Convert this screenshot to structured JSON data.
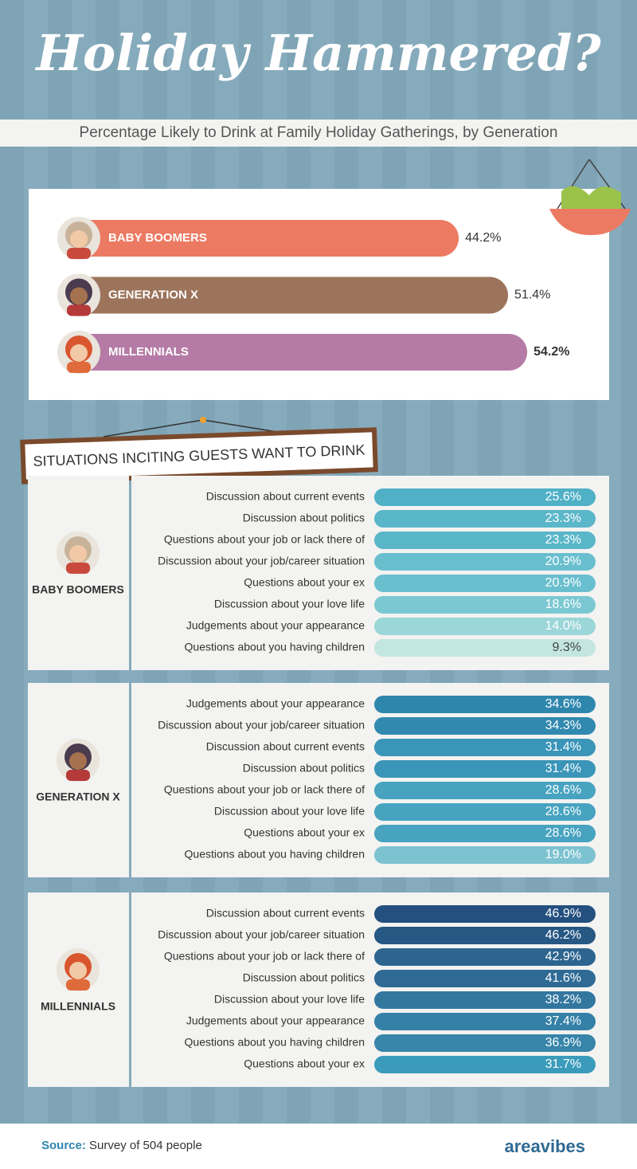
{
  "header": {
    "title": "Holiday Hammered?",
    "subtitle": "Percentage Likely to Drink at Family Holiday Gatherings, by Generation"
  },
  "chart_data": {
    "type": "bar",
    "orientation": "horizontal",
    "categories": [
      "BABY BOOMERS",
      "GENERATION X",
      "MILLENNIALS"
    ],
    "values": [
      44.2,
      51.4,
      54.2
    ],
    "value_labels": [
      "44.2%",
      "51.4%",
      "54.2%"
    ],
    "colors": [
      "#ec7a62",
      "#9c735b",
      "#b57ba6"
    ]
  },
  "sign": "SITUATIONS INCITING GUESTS WANT TO DRINK",
  "panels": [
    {
      "name": "BABY BOOMERS",
      "rows": [
        {
          "label": "Discussion about current events",
          "value": "25.6%",
          "color": "#4fb0c6"
        },
        {
          "label": "Discussion about politics",
          "value": "23.3%",
          "color": "#5ab6c9"
        },
        {
          "label": "Questions about your job or lack there of",
          "value": "23.3%",
          "color": "#5ab6c9"
        },
        {
          "label": "Discussion about your job/career situation",
          "value": "20.9%",
          "color": "#6abfcf"
        },
        {
          "label": "Questions about your ex",
          "value": "20.9%",
          "color": "#6abfcf"
        },
        {
          "label": "Discussion about your love life",
          "value": "18.6%",
          "color": "#7cc8d2"
        },
        {
          "label": "Judgements about your appearance",
          "value": "14.0%",
          "color": "#9bd6d8"
        },
        {
          "label": "Questions about you having children",
          "value": "9.3%",
          "color": "#c3e6e0"
        }
      ]
    },
    {
      "name": "GENERATION X",
      "rows": [
        {
          "label": "Judgements about your appearance",
          "value": "34.6%",
          "color": "#2f86ad"
        },
        {
          "label": "Discussion about your job/career situation",
          "value": "34.3%",
          "color": "#3189b0"
        },
        {
          "label": "Discussion about current events",
          "value": "31.4%",
          "color": "#3a95b8"
        },
        {
          "label": "Discussion about politics",
          "value": "31.4%",
          "color": "#3a95b8"
        },
        {
          "label": "Questions about your job or lack there of",
          "value": "28.6%",
          "color": "#47a3c0"
        },
        {
          "label": "Discussion about your love life",
          "value": "28.6%",
          "color": "#47a3c0"
        },
        {
          "label": "Questions about your ex",
          "value": "28.6%",
          "color": "#47a3c0"
        },
        {
          "label": "Questions about you having children",
          "value": "19.0%",
          "color": "#7cc2d0"
        }
      ]
    },
    {
      "name": "MILLENNIALS",
      "rows": [
        {
          "label": "Discussion about current events",
          "value": "46.9%",
          "color": "#24507f"
        },
        {
          "label": "Discussion about your job/career situation",
          "value": "46.2%",
          "color": "#275783"
        },
        {
          "label": "Questions about your job or lack there of",
          "value": "42.9%",
          "color": "#2d6590"
        },
        {
          "label": "Discussion about politics",
          "value": "41.6%",
          "color": "#2f6a94"
        },
        {
          "label": "Discussion about your love life",
          "value": "38.2%",
          "color": "#33779f"
        },
        {
          "label": "Judgements about your appearance",
          "value": "37.4%",
          "color": "#3580a6"
        },
        {
          "label": "Questions about you having children",
          "value": "36.9%",
          "color": "#3785a9"
        },
        {
          "label": "Questions about your ex",
          "value": "31.7%",
          "color": "#3a9bbb"
        }
      ]
    }
  ],
  "footer": {
    "source_label": "Source:",
    "source_text": "Survey of 504 people",
    "brand": "areavibes"
  }
}
